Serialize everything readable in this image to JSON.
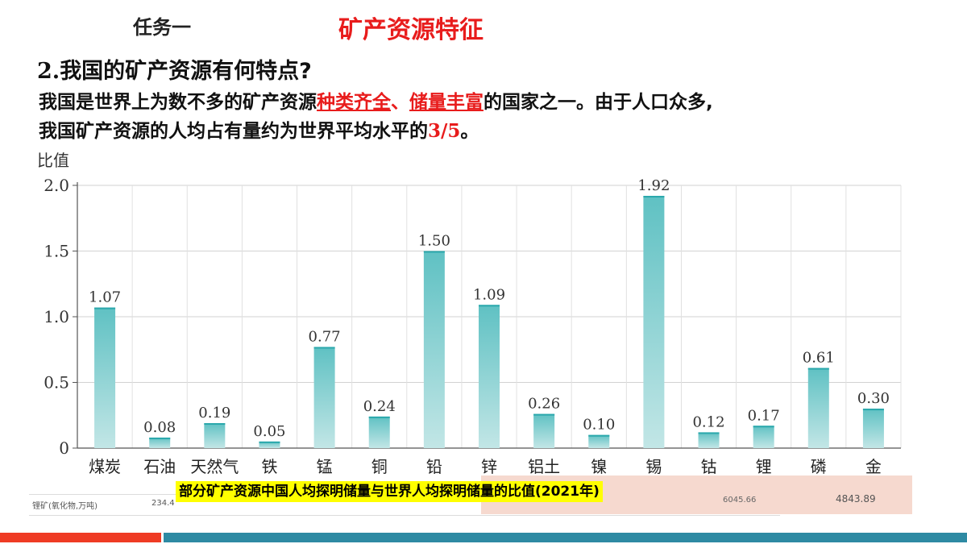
{
  "header": {
    "task_label": "任务一",
    "task_title": "矿产资源特征"
  },
  "question": {
    "number": "2.",
    "text": "我国的矿产资源有何特点?"
  },
  "paragraph": {
    "line1_a": "我国是世界上为数不多的矿产资源",
    "line1_hl1": "种类齐全",
    "line1_sep": "、",
    "line1_hl2": "储量丰富",
    "line1_b": "的国家之一。由于人口众多,",
    "line2_a": "我国矿产资源的人均占有量约为世界平均水平的",
    "line2_hl": "3/5",
    "line2_b": "。"
  },
  "chart_data": {
    "type": "bar",
    "ylabel": "比值",
    "ylim": [
      0,
      2.0
    ],
    "yticks": [
      "0",
      "0.5",
      "1.0",
      "1.5",
      "2.0"
    ],
    "categories": [
      "煤炭",
      "石油",
      "天然气",
      "铁",
      "锰",
      "铜",
      "铅",
      "锌",
      "铝土",
      "镍",
      "锡",
      "钴",
      "锂",
      "磷",
      "金"
    ],
    "values": [
      1.07,
      0.08,
      0.19,
      0.05,
      0.77,
      0.24,
      1.5,
      1.09,
      0.26,
      0.1,
      1.92,
      0.12,
      0.17,
      0.61,
      0.3
    ],
    "value_labels": [
      "1.07",
      "0.08",
      "0.19",
      "0.05",
      "0.77",
      "0.24",
      "1.50",
      "1.09",
      "0.26",
      "0.10",
      "1.92",
      "0.12",
      "0.17",
      "0.61",
      "0.30"
    ],
    "grid": true,
    "colors": {
      "bar_top": "#5fc1c3",
      "bar_bottom": "#c2e6e6",
      "bar_dark": "#2aa8ac"
    }
  },
  "caption": "部分矿产资源中国人均探明储量与世界人均探明储量的比值(2021年)",
  "background_table": {
    "row1_label": "锂矿(氧化物,万吨)",
    "row1_value": "234.4",
    "row1_value2": "6045.66",
    "row1_value3": "4843.89"
  },
  "colors": {
    "accent_red": "#e81c1c",
    "footer_red": "#ef3b24",
    "footer_blue": "#2e8aa3",
    "caption_bg": "#ffff00"
  }
}
